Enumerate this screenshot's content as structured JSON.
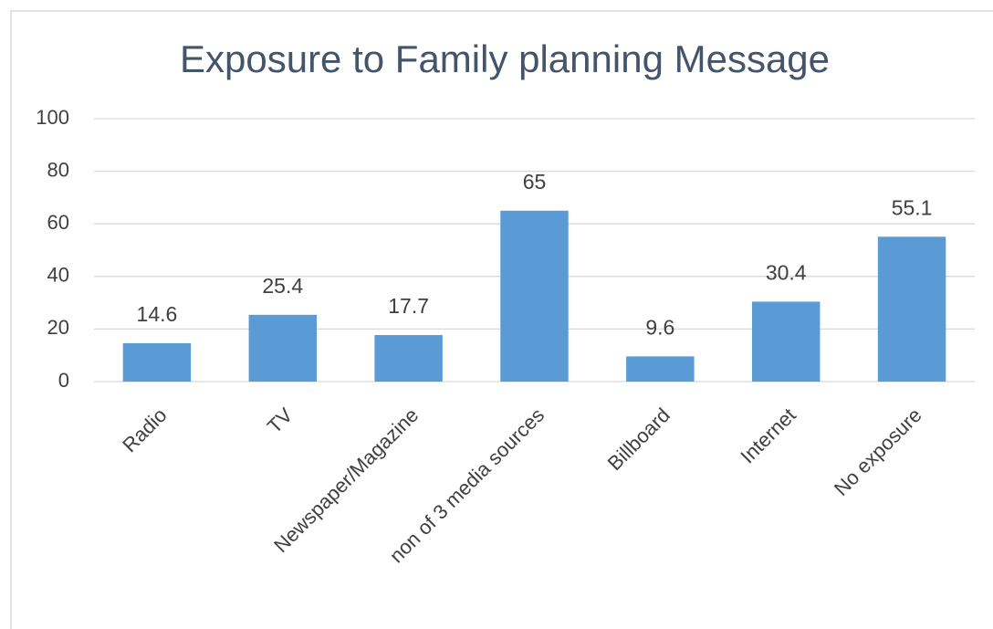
{
  "chart_data": {
    "type": "bar",
    "title": "Exposure to Family planning Message",
    "categories": [
      "Radio",
      "TV",
      "Newspaper/Magazine",
      "non of 3 media sources",
      "Billboard",
      "Internet",
      "No exposure"
    ],
    "values": [
      14.6,
      25.4,
      17.7,
      65,
      9.6,
      30.4,
      55.1
    ],
    "color": "#5b9bd5",
    "ylim": [
      0,
      100
    ],
    "yticks": [
      0,
      20,
      40,
      60,
      80,
      100
    ],
    "grid": true
  }
}
